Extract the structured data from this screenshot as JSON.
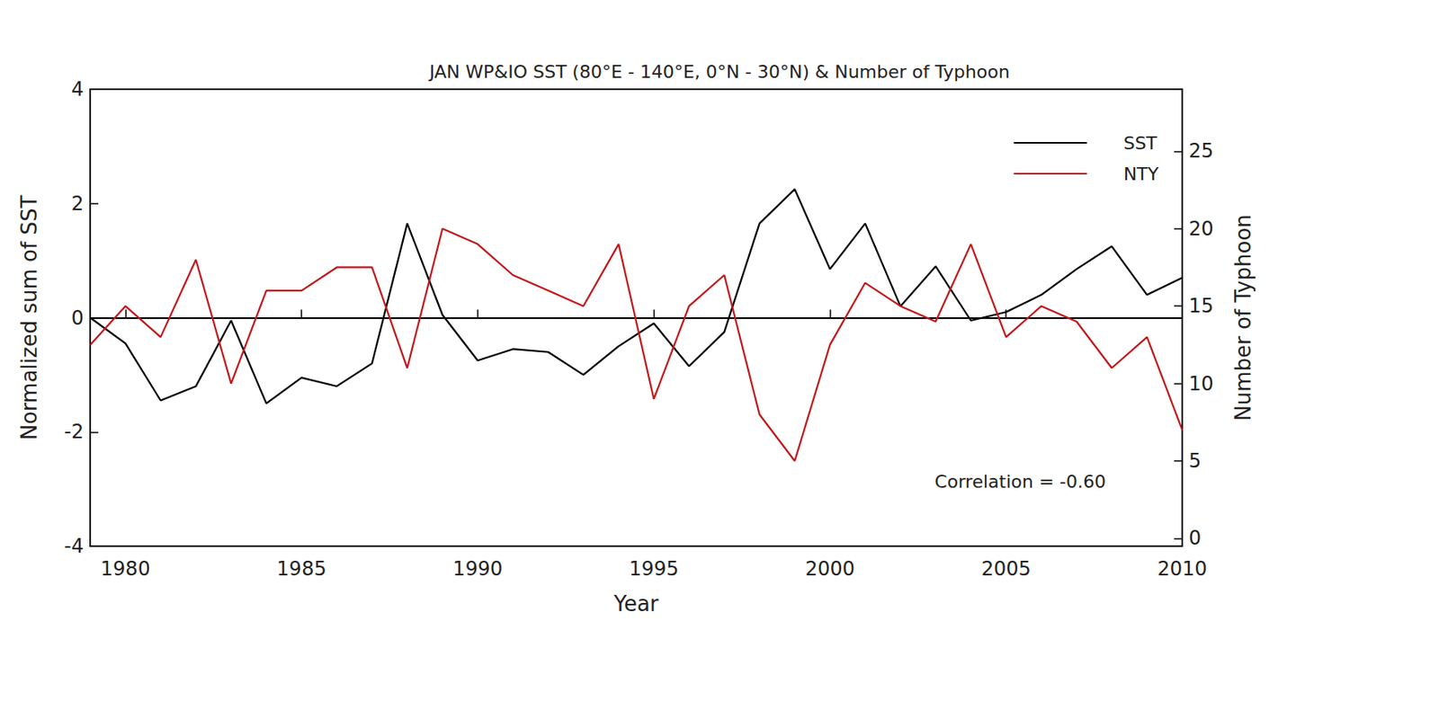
{
  "chart_data": {
    "type": "line",
    "title": "JAN WP&IO SST (80°E - 140°E, 0°N - 30°N) & Number of Typhoon",
    "x_label": "Year",
    "y_label": "Normalized sum of SST",
    "y2_label": "Number of Typhoon",
    "x": [
      1979,
      1980,
      1981,
      1982,
      1983,
      1984,
      1985,
      1986,
      1987,
      1988,
      1989,
      1990,
      1991,
      1992,
      1993,
      1994,
      1995,
      1996,
      1997,
      1998,
      1999,
      2000,
      2001,
      2002,
      2003,
      2004,
      2005,
      2006,
      2007,
      2008,
      2009,
      2010
    ],
    "series": [
      {
        "name": "SST",
        "color": "#000000",
        "values": [
          0,
          -0.45,
          -1.45,
          -1.2,
          -0.05,
          -1.5,
          -1.05,
          -1.2,
          -0.8,
          1.65,
          0.05,
          -0.75,
          -0.55,
          -0.6,
          -1.0,
          -0.5,
          -0.1,
          -0.85,
          -0.25,
          1.65,
          2.25,
          0.85,
          1.65,
          0.2,
          0.9,
          -0.05,
          0.1,
          0.4,
          0.85,
          1.25,
          0.4,
          0.7
        ]
      },
      {
        "name": "NTY",
        "color": "#c0181c",
        "axis": "y2",
        "values": [
          12.5,
          15,
          13,
          18,
          10,
          16,
          16,
          17.5,
          17.5,
          11,
          20,
          19,
          17,
          16,
          15,
          19,
          9,
          15,
          17,
          8,
          5,
          12.5,
          16.5,
          15,
          14,
          19,
          13,
          15,
          14,
          11,
          13,
          7
        ]
      }
    ],
    "xlim": [
      1979,
      2010
    ],
    "xticks": [
      1980,
      1985,
      1990,
      1995,
      2000,
      2005,
      2010
    ],
    "ylim": [
      -4,
      4
    ],
    "yticks": [
      -4,
      -2,
      0,
      2,
      4
    ],
    "y2lim": [
      -0.5,
      29
    ],
    "y2ticks": [
      0,
      5,
      10,
      15,
      20,
      25
    ],
    "annotations": [
      "Correlation = -0.60"
    ],
    "legend": "top-right",
    "grid": false
  }
}
